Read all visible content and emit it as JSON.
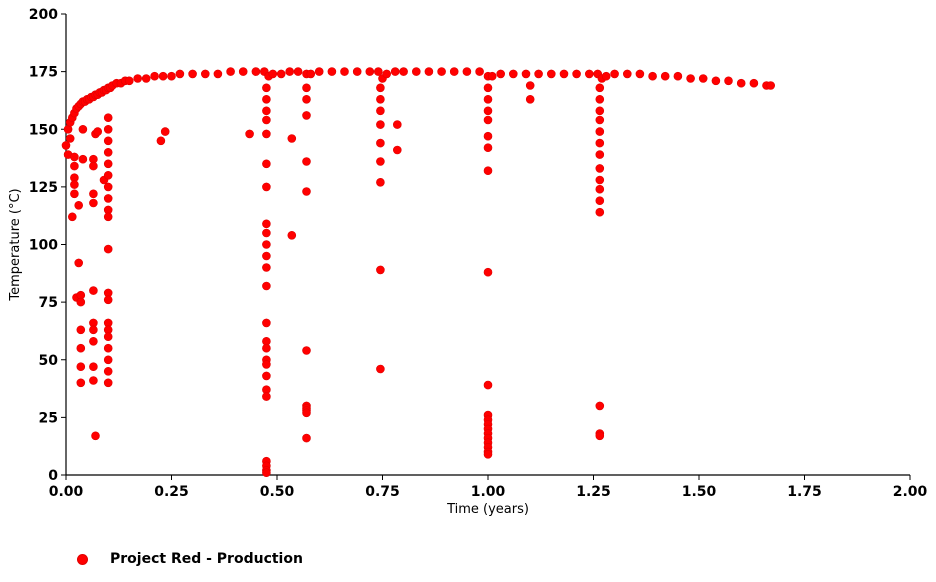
{
  "chart_data": {
    "type": "scatter",
    "xlabel": "Time (years)",
    "ylabel": "Temperature (°C)",
    "xlim": [
      0,
      2
    ],
    "ylim": [
      0,
      200
    ],
    "x_ticks": [
      "0.00",
      "0.25",
      "0.50",
      "0.75",
      "1.00",
      "1.25",
      "1.50",
      "1.75",
      "2.00"
    ],
    "y_ticks": [
      "0",
      "25",
      "50",
      "75",
      "100",
      "125",
      "150",
      "175",
      "200"
    ],
    "grid": false,
    "legend_position": "bottom-left",
    "series": [
      {
        "name": "Project Red - Production",
        "color": "#ff0000",
        "marker": "circle",
        "points": [
          [
            0.0,
            143
          ],
          [
            0.005,
            150
          ],
          [
            0.01,
            153
          ],
          [
            0.015,
            155
          ],
          [
            0.02,
            157
          ],
          [
            0.025,
            159
          ],
          [
            0.03,
            160
          ],
          [
            0.035,
            161
          ],
          [
            0.04,
            162
          ],
          [
            0.045,
            162
          ],
          [
            0.05,
            163
          ],
          [
            0.055,
            163
          ],
          [
            0.06,
            164
          ],
          [
            0.065,
            164
          ],
          [
            0.07,
            165
          ],
          [
            0.075,
            165
          ],
          [
            0.08,
            166
          ],
          [
            0.085,
            166
          ],
          [
            0.09,
            167
          ],
          [
            0.095,
            167
          ],
          [
            0.1,
            168
          ],
          [
            0.105,
            168
          ],
          [
            0.11,
            169
          ],
          [
            0.12,
            170
          ],
          [
            0.13,
            170
          ],
          [
            0.14,
            171
          ],
          [
            0.15,
            171
          ],
          [
            0.17,
            172
          ],
          [
            0.19,
            172
          ],
          [
            0.21,
            173
          ],
          [
            0.23,
            173
          ],
          [
            0.25,
            173
          ],
          [
            0.27,
            174
          ],
          [
            0.3,
            174
          ],
          [
            0.33,
            174
          ],
          [
            0.36,
            174
          ],
          [
            0.39,
            175
          ],
          [
            0.42,
            175
          ],
          [
            0.45,
            175
          ],
          [
            0.47,
            175
          ],
          [
            0.48,
            173
          ],
          [
            0.49,
            174
          ],
          [
            0.51,
            174
          ],
          [
            0.53,
            175
          ],
          [
            0.55,
            175
          ],
          [
            0.57,
            174
          ],
          [
            0.58,
            174
          ],
          [
            0.6,
            175
          ],
          [
            0.63,
            175
          ],
          [
            0.66,
            175
          ],
          [
            0.69,
            175
          ],
          [
            0.72,
            175
          ],
          [
            0.74,
            175
          ],
          [
            0.75,
            172
          ],
          [
            0.76,
            174
          ],
          [
            0.78,
            175
          ],
          [
            0.8,
            175
          ],
          [
            0.83,
            175
          ],
          [
            0.86,
            175
          ],
          [
            0.89,
            175
          ],
          [
            0.92,
            175
          ],
          [
            0.95,
            175
          ],
          [
            0.98,
            175
          ],
          [
            1.0,
            173
          ],
          [
            1.01,
            173
          ],
          [
            1.03,
            174
          ],
          [
            1.06,
            174
          ],
          [
            1.09,
            174
          ],
          [
            1.12,
            174
          ],
          [
            1.15,
            174
          ],
          [
            1.18,
            174
          ],
          [
            1.21,
            174
          ],
          [
            1.24,
            174
          ],
          [
            1.26,
            174
          ],
          [
            1.27,
            172
          ],
          [
            1.28,
            173
          ],
          [
            1.3,
            174
          ],
          [
            1.33,
            174
          ],
          [
            1.36,
            174
          ],
          [
            1.39,
            173
          ],
          [
            1.42,
            173
          ],
          [
            1.45,
            173
          ],
          [
            1.48,
            172
          ],
          [
            1.51,
            172
          ],
          [
            1.54,
            171
          ],
          [
            1.57,
            171
          ],
          [
            1.6,
            170
          ],
          [
            1.63,
            170
          ],
          [
            1.66,
            169
          ],
          [
            1.67,
            169
          ],
          [
            0.005,
            139
          ],
          [
            0.01,
            146
          ],
          [
            0.015,
            112
          ],
          [
            0.02,
            138
          ],
          [
            0.02,
            134
          ],
          [
            0.02,
            129
          ],
          [
            0.02,
            126
          ],
          [
            0.02,
            122
          ],
          [
            0.025,
            77
          ],
          [
            0.03,
            117
          ],
          [
            0.03,
            92
          ],
          [
            0.035,
            78
          ],
          [
            0.035,
            75
          ],
          [
            0.035,
            63
          ],
          [
            0.035,
            55
          ],
          [
            0.035,
            47
          ],
          [
            0.035,
            40
          ],
          [
            0.04,
            137
          ],
          [
            0.04,
            150
          ],
          [
            0.065,
            137
          ],
          [
            0.065,
            134
          ],
          [
            0.065,
            122
          ],
          [
            0.065,
            118
          ],
          [
            0.065,
            80
          ],
          [
            0.065,
            66
          ],
          [
            0.065,
            63
          ],
          [
            0.065,
            58
          ],
          [
            0.065,
            47
          ],
          [
            0.065,
            41
          ],
          [
            0.07,
            17
          ],
          [
            0.07,
            148
          ],
          [
            0.075,
            149
          ],
          [
            0.09,
            128
          ],
          [
            0.1,
            155
          ],
          [
            0.1,
            150
          ],
          [
            0.1,
            145
          ],
          [
            0.1,
            140
          ],
          [
            0.1,
            135
          ],
          [
            0.1,
            130
          ],
          [
            0.1,
            125
          ],
          [
            0.1,
            120
          ],
          [
            0.1,
            115
          ],
          [
            0.1,
            112
          ],
          [
            0.1,
            98
          ],
          [
            0.1,
            79
          ],
          [
            0.1,
            76
          ],
          [
            0.1,
            66
          ],
          [
            0.1,
            63
          ],
          [
            0.1,
            60
          ],
          [
            0.1,
            55
          ],
          [
            0.1,
            50
          ],
          [
            0.1,
            45
          ],
          [
            0.1,
            40
          ],
          [
            0.225,
            145
          ],
          [
            0.235,
            149
          ],
          [
            0.435,
            148
          ],
          [
            0.475,
            168
          ],
          [
            0.475,
            163
          ],
          [
            0.475,
            158
          ],
          [
            0.475,
            154
          ],
          [
            0.475,
            148
          ],
          [
            0.475,
            135
          ],
          [
            0.475,
            125
          ],
          [
            0.475,
            109
          ],
          [
            0.475,
            105
          ],
          [
            0.475,
            100
          ],
          [
            0.475,
            95
          ],
          [
            0.475,
            90
          ],
          [
            0.475,
            82
          ],
          [
            0.475,
            66
          ],
          [
            0.475,
            58
          ],
          [
            0.475,
            55
          ],
          [
            0.475,
            50
          ],
          [
            0.475,
            48
          ],
          [
            0.475,
            43
          ],
          [
            0.475,
            37
          ],
          [
            0.475,
            34
          ],
          [
            0.475,
            6
          ],
          [
            0.475,
            4
          ],
          [
            0.475,
            2
          ],
          [
            0.475,
            1
          ],
          [
            0.535,
            146
          ],
          [
            0.535,
            104
          ],
          [
            0.57,
            168
          ],
          [
            0.57,
            163
          ],
          [
            0.57,
            156
          ],
          [
            0.57,
            136
          ],
          [
            0.57,
            123
          ],
          [
            0.57,
            54
          ],
          [
            0.57,
            30
          ],
          [
            0.57,
            29
          ],
          [
            0.57,
            28
          ],
          [
            0.57,
            27
          ],
          [
            0.57,
            16
          ],
          [
            0.745,
            168
          ],
          [
            0.745,
            163
          ],
          [
            0.745,
            158
          ],
          [
            0.745,
            152
          ],
          [
            0.745,
            144
          ],
          [
            0.745,
            136
          ],
          [
            0.745,
            127
          ],
          [
            0.745,
            89
          ],
          [
            0.745,
            46
          ],
          [
            0.785,
            152
          ],
          [
            0.785,
            141
          ],
          [
            1.0,
            168
          ],
          [
            1.0,
            163
          ],
          [
            1.0,
            158
          ],
          [
            1.0,
            154
          ],
          [
            1.0,
            147
          ],
          [
            1.0,
            142
          ],
          [
            1.0,
            132
          ],
          [
            1.0,
            88
          ],
          [
            1.0,
            39
          ],
          [
            1.0,
            26
          ],
          [
            1.0,
            24
          ],
          [
            1.0,
            22
          ],
          [
            1.0,
            20
          ],
          [
            1.0,
            18
          ],
          [
            1.0,
            16
          ],
          [
            1.0,
            14
          ],
          [
            1.0,
            12
          ],
          [
            1.0,
            10
          ],
          [
            1.0,
            9
          ],
          [
            1.1,
            169
          ],
          [
            1.1,
            163
          ],
          [
            1.265,
            168
          ],
          [
            1.265,
            163
          ],
          [
            1.265,
            158
          ],
          [
            1.265,
            154
          ],
          [
            1.265,
            149
          ],
          [
            1.265,
            144
          ],
          [
            1.265,
            139
          ],
          [
            1.265,
            133
          ],
          [
            1.265,
            128
          ],
          [
            1.265,
            124
          ],
          [
            1.265,
            119
          ],
          [
            1.265,
            114
          ],
          [
            1.265,
            30
          ],
          [
            1.265,
            18
          ],
          [
            1.265,
            17
          ]
        ]
      }
    ]
  }
}
